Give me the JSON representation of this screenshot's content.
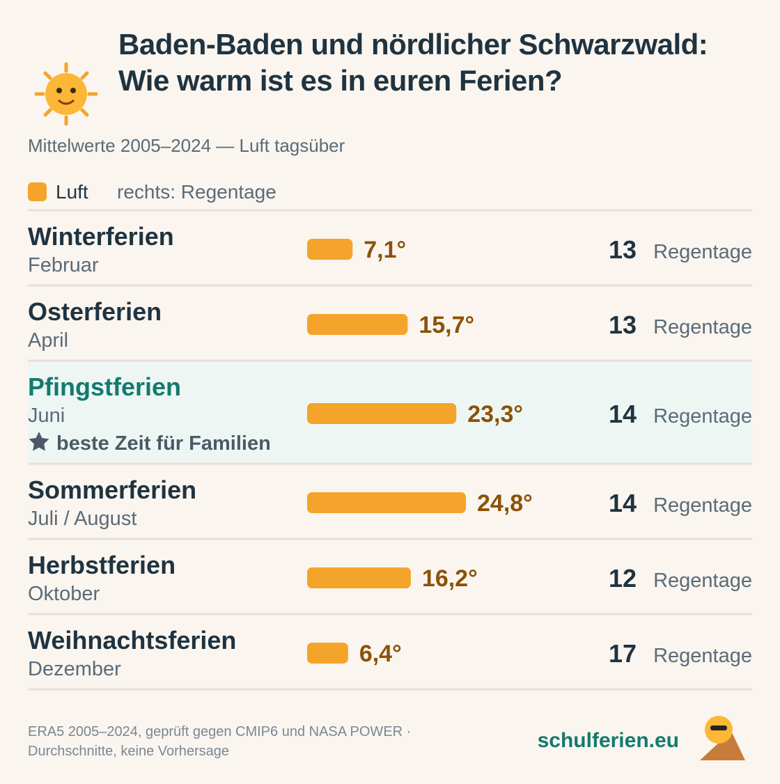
{
  "chart_data": {
    "type": "bar",
    "title": "Baden-Baden und nördlicher Schwarzwald: Wie warm ist es in euren Ferien?",
    "subtitle": "Mittelwerte 2005–2024 — Luft tagsüber",
    "right_legend": "rechts: Regentage",
    "categories": [
      "Winterferien",
      "Osterferien",
      "Pfingstferien",
      "Sommerferien",
      "Herbstferien",
      "Weihnachtsferien"
    ],
    "months": [
      "Februar",
      "April",
      "Juni",
      "Juli / August",
      "Oktober",
      "Dezember"
    ],
    "notes": [
      null,
      null,
      "beste Zeit für Familien",
      null,
      null,
      null
    ],
    "series": [
      {
        "name": "Luft",
        "color": "#f4a42a",
        "values": [
          7.1,
          15.7,
          23.3,
          24.8,
          16.2,
          6.4
        ],
        "value_labels": [
          "7,1°",
          "15,7°",
          "23,3°",
          "24,8°",
          "16,2°",
          "6,4°"
        ]
      }
    ],
    "rain_days": {
      "unit": "Regentage",
      "values": [
        13,
        13,
        14,
        14,
        12,
        17
      ]
    },
    "footer": {
      "source": [
        "ERA5 2005–2024, geprüft gegen CMIP6 und NASA POWER ·",
        "Durchschnitte, keine Vorhersage"
      ],
      "brand": "schulferien.eu"
    }
  }
}
